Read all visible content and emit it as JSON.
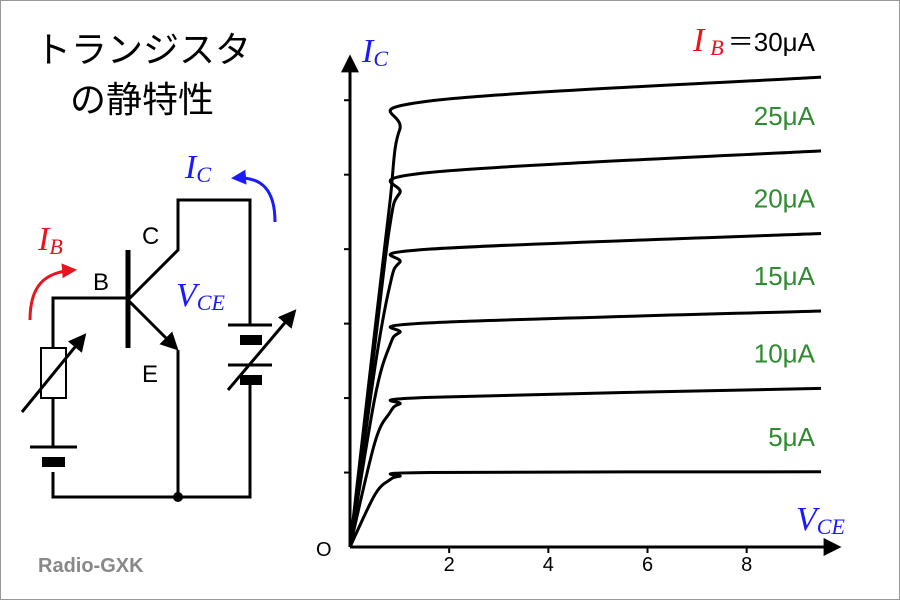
{
  "title_lines": [
    "トランジスタ",
    "の静特性"
  ],
  "circuit": {
    "ib": {
      "main": "I",
      "sub": "B"
    },
    "base": "B",
    "collector": "C",
    "emitter": "E",
    "ic": {
      "main": "I",
      "sub": "C"
    },
    "vce": {
      "main": "V",
      "sub": "CE"
    }
  },
  "credit": "Radio-GXK",
  "chart_data": {
    "type": "line",
    "x_label": {
      "main": "V",
      "sub": "CE"
    },
    "y_label": {
      "main": "I",
      "sub": "C"
    },
    "origin_label": "O",
    "x": [
      0,
      0.5,
      0.8,
      1.0,
      1.6,
      9.5
    ],
    "xlim": [
      0,
      9.6
    ],
    "xticks": [
      2,
      4,
      6,
      8
    ],
    "ylim": [
      0,
      6.5
    ],
    "yticks": [
      1,
      2,
      3,
      4,
      5,
      6
    ],
    "legend_prefix": {
      "main": "I",
      "sub": "B",
      "equals": "＝",
      "color": "#e8141e"
    },
    "series": [
      {
        "name": "5μA",
        "color": "#000000",
        "label_color": "#2e8b2e",
        "values": [
          0,
          0.7,
          0.9,
          0.95,
          1.0,
          1.01
        ]
      },
      {
        "name": "10μA",
        "color": "#000000",
        "label_color": "#2e8b2e",
        "values": [
          0,
          1.4,
          1.8,
          1.92,
          2.01,
          2.13
        ]
      },
      {
        "name": "15μA",
        "color": "#000000",
        "label_color": "#2e8b2e",
        "values": [
          0,
          2.0,
          2.7,
          2.88,
          3.01,
          3.17
        ]
      },
      {
        "name": "20μA",
        "color": "#000000",
        "label_color": "#2e8b2e",
        "values": [
          0,
          2.4,
          3.5,
          3.82,
          4.0,
          4.21
        ]
      },
      {
        "name": "25μA",
        "color": "#000000",
        "label_color": "#2e8b2e",
        "values": [
          0,
          2.7,
          4.3,
          4.75,
          5.03,
          5.32
        ]
      },
      {
        "name": "30μA",
        "color": "#000000",
        "label_color": "#000000",
        "values": [
          0,
          2.9,
          4.6,
          5.6,
          5.99,
          6.31
        ]
      }
    ]
  }
}
